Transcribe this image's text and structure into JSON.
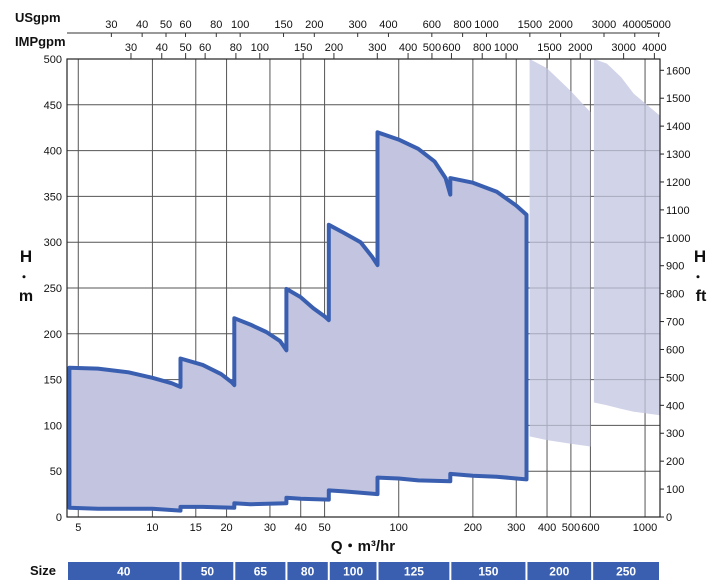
{
  "chart_data": {
    "type": "area",
    "title": "",
    "xlabel": "Q・m³/hr",
    "ylabel_left_top": "H",
    "ylabel_left_dot": "・",
    "ylabel_left_unit": "m",
    "ylabel_right_top": "H",
    "ylabel_right_dot": "・",
    "ylabel_right_unit": "ft",
    "x_scale": "log",
    "xlim": [
      4.5,
      1150
    ],
    "ylim": [
      0,
      500
    ],
    "grid": true,
    "top_axis_usgpm": {
      "label": "USgpm",
      "ticks": [
        "30",
        "40",
        "50",
        "60",
        "80",
        "100",
        "150",
        "200",
        "300",
        "400",
        "600",
        "800",
        "1000",
        "1500",
        "2000",
        "3000",
        "4000",
        "5000"
      ]
    },
    "top_axis_impgpm": {
      "label": "IMPgpm",
      "ticks": [
        "30",
        "40",
        "50",
        "60",
        "80",
        "100",
        "150",
        "200",
        "300",
        "400",
        "500",
        "600",
        "800",
        "1000",
        "1500",
        "2000",
        "3000",
        "4000"
      ]
    },
    "x_ticks": [
      "5",
      "10",
      "15",
      "20",
      "30",
      "40",
      "50",
      "100",
      "200",
      "300",
      "400",
      "500",
      "600",
      "1000"
    ],
    "y_ticks_m": [
      "0",
      "50",
      "100",
      "150",
      "200",
      "250",
      "300",
      "350",
      "400",
      "450",
      "500"
    ],
    "y_ticks_ft": [
      "0",
      "100",
      "200",
      "300",
      "400",
      "500",
      "600",
      "700",
      "800",
      "900",
      "1000",
      "1100",
      "1200",
      "1300",
      "1400",
      "1500",
      "1600"
    ],
    "envelope_color": "#3a5fb0",
    "fill_color": "#c2c4e0",
    "envelope_outline": [
      [
        4.6,
        10
      ],
      [
        4.6,
        163
      ],
      [
        6,
        162
      ],
      [
        8,
        158
      ],
      [
        10,
        152
      ],
      [
        12,
        146
      ],
      [
        13,
        142
      ],
      [
        13,
        173
      ],
      [
        16,
        166
      ],
      [
        19,
        156
      ],
      [
        21,
        147
      ],
      [
        21.5,
        144
      ],
      [
        21.5,
        217
      ],
      [
        25,
        210
      ],
      [
        29,
        202
      ],
      [
        33,
        192
      ],
      [
        35,
        182
      ],
      [
        35,
        249
      ],
      [
        40,
        240
      ],
      [
        45,
        228
      ],
      [
        50,
        219
      ],
      [
        52,
        215
      ],
      [
        52,
        319
      ],
      [
        60,
        310
      ],
      [
        70,
        300
      ],
      [
        78,
        284
      ],
      [
        82,
        275
      ],
      [
        82,
        420
      ],
      [
        100,
        412
      ],
      [
        120,
        402
      ],
      [
        140,
        388
      ],
      [
        155,
        370
      ],
      [
        162,
        352
      ],
      [
        162,
        370
      ],
      [
        200,
        365
      ],
      [
        250,
        355
      ],
      [
        300,
        340
      ],
      [
        330,
        330
      ],
      [
        330,
        41
      ],
      [
        250,
        44
      ],
      [
        200,
        45
      ],
      [
        162,
        47
      ],
      [
        162,
        39
      ],
      [
        120,
        40
      ],
      [
        100,
        42
      ],
      [
        82,
        43
      ],
      [
        82,
        25
      ],
      [
        60,
        28
      ],
      [
        52,
        29
      ],
      [
        52,
        19
      ],
      [
        40,
        20
      ],
      [
        35,
        21
      ],
      [
        35,
        15
      ],
      [
        25,
        14
      ],
      [
        21.5,
        15
      ],
      [
        21.5,
        10
      ],
      [
        16,
        11
      ],
      [
        13,
        11
      ],
      [
        13,
        7
      ],
      [
        10,
        9
      ],
      [
        8,
        9
      ],
      [
        6,
        9
      ],
      [
        4.6,
        10
      ]
    ],
    "faded_regions": [
      {
        "name": "200",
        "outline": [
          [
            340,
            500
          ],
          [
            400,
            490
          ],
          [
            500,
            465
          ],
          [
            600,
            442
          ],
          [
            600,
            77
          ],
          [
            500,
            80
          ],
          [
            400,
            84
          ],
          [
            340,
            88
          ]
        ]
      },
      {
        "name": "250",
        "outline": [
          [
            620,
            500
          ],
          [
            700,
            495
          ],
          [
            800,
            480
          ],
          [
            900,
            462
          ],
          [
            1150,
            438
          ],
          [
            1150,
            111
          ],
          [
            900,
            115
          ],
          [
            800,
            118
          ],
          [
            700,
            122
          ],
          [
            620,
            125
          ]
        ]
      }
    ],
    "size_bar": {
      "label": "Size",
      "sizes": [
        {
          "name": "40",
          "range": [
            4.5,
            13
          ]
        },
        {
          "name": "50",
          "range": [
            13,
            21.5
          ]
        },
        {
          "name": "65",
          "range": [
            21.5,
            35
          ]
        },
        {
          "name": "80",
          "range": [
            35,
            52
          ]
        },
        {
          "name": "100",
          "range": [
            52,
            82
          ]
        },
        {
          "name": "125",
          "range": [
            82,
            162
          ]
        },
        {
          "name": "150",
          "range": [
            162,
            330
          ]
        },
        {
          "name": "200",
          "range": [
            330,
            610
          ]
        },
        {
          "name": "250",
          "range": [
            610,
            1150
          ]
        }
      ]
    }
  }
}
